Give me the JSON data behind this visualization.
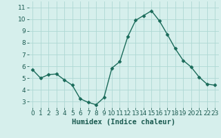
{
  "x": [
    0,
    1,
    2,
    3,
    4,
    5,
    6,
    7,
    8,
    9,
    10,
    11,
    12,
    13,
    14,
    15,
    16,
    17,
    18,
    19,
    20,
    21,
    22,
    23
  ],
  "y": [
    5.7,
    5.0,
    5.3,
    5.35,
    4.85,
    4.4,
    3.25,
    2.95,
    2.75,
    3.35,
    5.85,
    6.4,
    8.5,
    9.9,
    10.3,
    10.7,
    9.85,
    8.7,
    7.5,
    6.5,
    5.95,
    5.1,
    4.5,
    4.4
  ],
  "line_color": "#1a6b5a",
  "marker": "D",
  "marker_size": 2.5,
  "bg_color": "#d6efec",
  "grid_color": "#aed8d3",
  "xlabel": "Humidex (Indice chaleur)",
  "ylim": [
    2.5,
    11.5
  ],
  "xlim": [
    -0.5,
    23.5
  ],
  "yticks": [
    3,
    4,
    5,
    6,
    7,
    8,
    9,
    10,
    11
  ],
  "xticks": [
    0,
    1,
    2,
    3,
    4,
    5,
    6,
    7,
    8,
    9,
    10,
    11,
    12,
    13,
    14,
    15,
    16,
    17,
    18,
    19,
    20,
    21,
    22,
    23
  ],
  "font_color": "#1a5a50",
  "xlabel_fontsize": 7.5,
  "tick_fontsize": 6.5
}
